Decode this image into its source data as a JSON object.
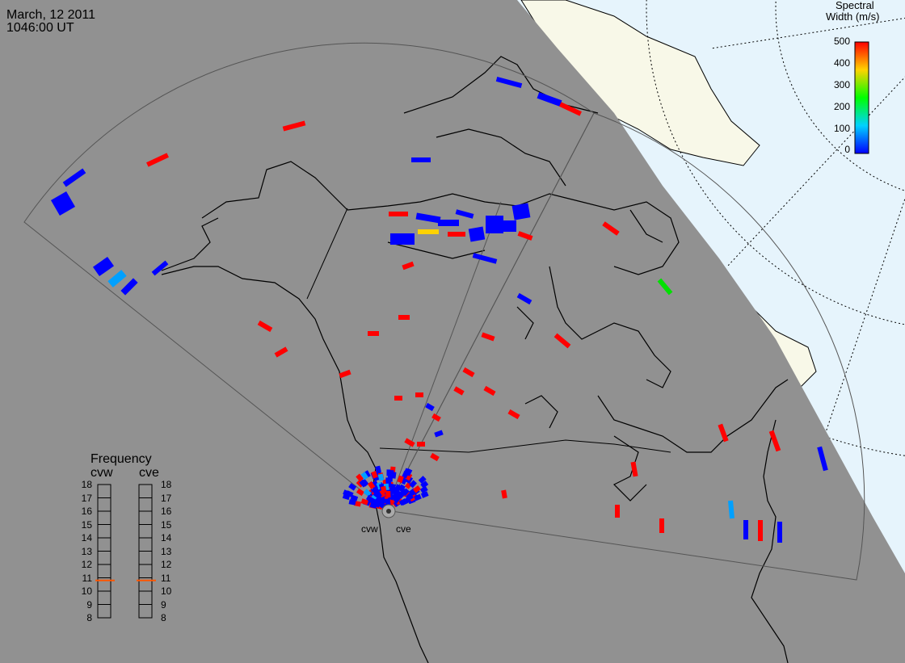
{
  "header": {
    "date": "March, 12 2011",
    "time": "1046:00 UT"
  },
  "colorbar": {
    "title_line1": "Spectral",
    "title_line2": "Width (m/s)",
    "ticks": [
      "500",
      "400",
      "300",
      "200",
      "100",
      "0"
    ],
    "min": 0,
    "max": 500,
    "colors": [
      "#ff0000",
      "#ffd200",
      "#00ff00",
      "#00d2ff",
      "#0000ff"
    ]
  },
  "frequency_panel": {
    "title": "Frequency",
    "radar_left": "cvw",
    "radar_right": "cve",
    "scale_labels": [
      "18",
      "17",
      "16",
      "15",
      "14",
      "13",
      "12",
      "11",
      "10",
      "9",
      "8"
    ],
    "cvw_marker_level": 10.8,
    "cve_marker_level": 10.8,
    "marker_color": "#ff5500"
  },
  "stations": {
    "west": "cvw",
    "east": "cve"
  },
  "map_colors": {
    "night_shade": "#919191",
    "land_daylight": "#f8f8e8",
    "ocean_daylight": "#e6f4fc",
    "coastline": "#000000",
    "fov_outline": "#555555"
  }
}
